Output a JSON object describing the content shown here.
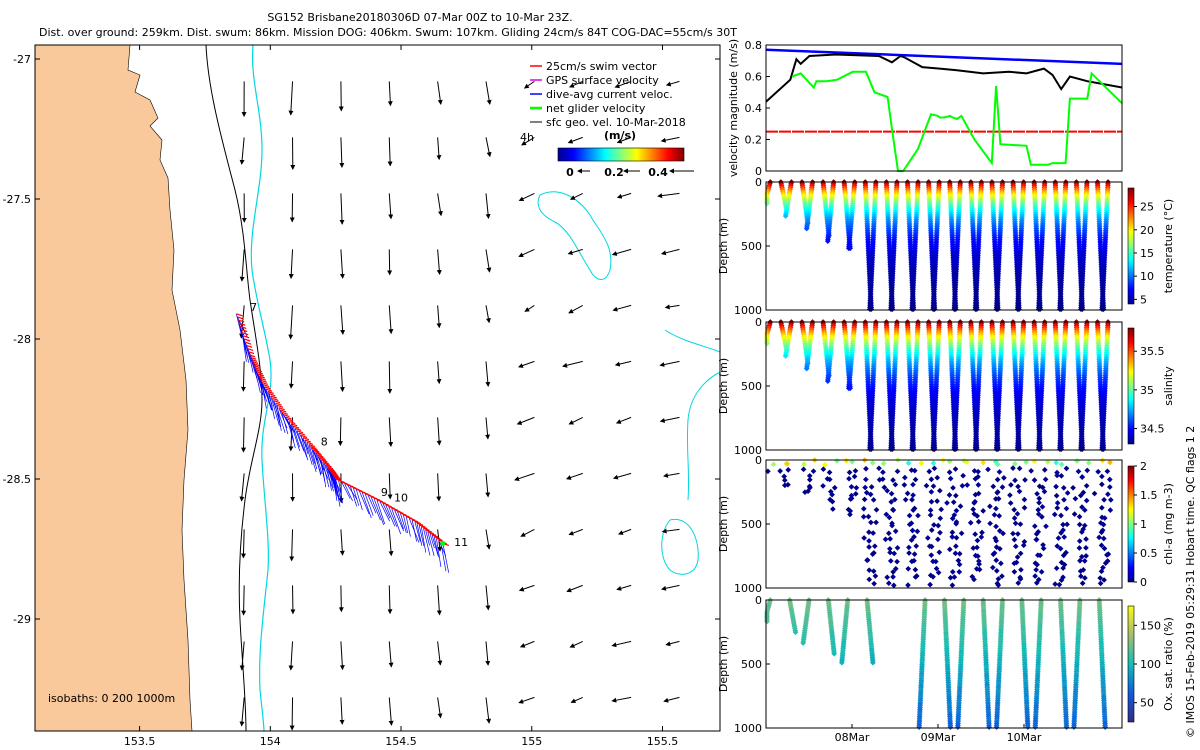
{
  "title": {
    "line1": "SG152 Brisbane20180306D 07-Mar 00Z to 10-Mar 23Z.",
    "line2": "Dist. over ground: 259km. Dist. swum: 86km. Mission DOG: 406km. Swum: 107km. Gliding 24cm/s 84T COG-DAC=55cm/s 30T"
  },
  "copyright": "© IMOS 15-Feb-2019 05:29:31 Hobart time. QC flags 1  2",
  "colors": {
    "land": "#F9C89B",
    "isobath_200": "#00D8E0",
    "isobath_1000": "#000000",
    "swim": "#FF0000",
    "gps": "#E000E0",
    "dac": "#0000FF",
    "net": "#00FF00",
    "sfc": "#000000"
  },
  "chart_data": [
    {
      "type": "map",
      "name": "glider track map",
      "xlim": [
        153.1,
        155.72
      ],
      "ylim": [
        -29.4,
        -26.95
      ],
      "x_ticks": [
        153.5,
        154,
        154.5,
        155,
        155.5
      ],
      "x_tick_labels": [
        "153.5",
        "154",
        "154.5",
        "155",
        "155.5"
      ],
      "y_ticks": [
        -27,
        -27.5,
        -28,
        -28.5,
        -29
      ],
      "y_tick_labels": [
        "-27",
        "-27.5",
        "-28",
        "-28.5",
        "-29"
      ],
      "legend": [
        {
          "label": "25cm/s swim vector",
          "color": "#FF0000"
        },
        {
          "label": "GPS surface velocity",
          "color": "#E000E0"
        },
        {
          "label": "dive-avg current veloc.",
          "color": "#0000FF"
        },
        {
          "label": "net glider velocity",
          "color": "#00FF00"
        },
        {
          "label": "sfc geo. vel. 10-Mar-2018",
          "color": "#000000"
        }
      ],
      "scale_label": "4h",
      "colorbar_label": "(m/s)",
      "colorbar_ticks": [
        "0",
        "0.2",
        "0.4"
      ],
      "isobaths_label": "isobaths: 0   200  1000m",
      "track_day_labels": [
        {
          "label": "7",
          "lon": 153.9,
          "lat": -27.9
        },
        {
          "label": "8",
          "lon": 154.17,
          "lat": -28.38
        },
        {
          "label": "9",
          "lon": 154.4,
          "lat": -28.56
        },
        {
          "label": "10",
          "lon": 154.45,
          "lat": -28.58
        },
        {
          "label": "11",
          "lon": 154.68,
          "lat": -28.74
        }
      ],
      "track": [
        {
          "lon": 153.87,
          "lat": -27.91
        },
        {
          "lon": 153.92,
          "lat": -28.06
        },
        {
          "lon": 153.97,
          "lat": -28.16
        },
        {
          "lon": 154.05,
          "lat": -28.27
        },
        {
          "lon": 154.15,
          "lat": -28.38
        },
        {
          "lon": 154.22,
          "lat": -28.46
        },
        {
          "lon": 154.25,
          "lat": -28.5
        },
        {
          "lon": 154.4,
          "lat": -28.57
        },
        {
          "lon": 154.55,
          "lat": -28.65
        },
        {
          "lon": 154.66,
          "lat": -28.73
        }
      ]
    },
    {
      "type": "line",
      "name": "velocity magnitude",
      "ylabel": "velocity magnitude (m/s)",
      "xlim": [
        0,
        4.1
      ],
      "ylim": [
        0,
        0.8
      ],
      "y_ticks": [
        0,
        0.2,
        0.4,
        0.6,
        0.8
      ],
      "y_tick_labels": [
        "0",
        "0.2",
        "0.4",
        "0.6",
        "0.8"
      ],
      "series": [
        {
          "name": "blue",
          "color": "#0000FF",
          "x": [
            0,
            4.1
          ],
          "y": [
            0.77,
            0.68
          ]
        },
        {
          "name": "black",
          "color": "#000000",
          "x": [
            0,
            0.28,
            0.35,
            0.4,
            0.5,
            0.8,
            1.3,
            1.45,
            1.55,
            1.6,
            1.8,
            2.0,
            2.2,
            2.5,
            2.8,
            3.0,
            3.2,
            3.3,
            3.4,
            3.5,
            3.7,
            4.1
          ],
          "y": [
            0.44,
            0.58,
            0.71,
            0.68,
            0.73,
            0.74,
            0.73,
            0.69,
            0.73,
            0.72,
            0.66,
            0.65,
            0.64,
            0.62,
            0.63,
            0.62,
            0.65,
            0.61,
            0.52,
            0.6,
            0.57,
            0.53
          ]
        },
        {
          "name": "red",
          "color": "#FF0000",
          "x": [
            0,
            4.1
          ],
          "y": [
            0.25,
            0.25
          ]
        },
        {
          "name": "green",
          "color": "#00FF00",
          "x": [
            0.3,
            0.4,
            0.55,
            0.58,
            0.7,
            0.82,
            1.0,
            1.15,
            1.25,
            1.4,
            1.45,
            1.52,
            1.58,
            1.75,
            1.9,
            1.98,
            2.0,
            2.05,
            2.12,
            2.15,
            2.2,
            2.25,
            2.4,
            2.6,
            2.65,
            2.7,
            3.0,
            3.05,
            3.25,
            3.3,
            3.45,
            3.5,
            3.7,
            3.75,
            4.1
          ],
          "y": [
            0.6,
            0.62,
            0.53,
            0.57,
            0.57,
            0.58,
            0.63,
            0.63,
            0.5,
            0.47,
            0.27,
            0.0,
            0.0,
            0.14,
            0.36,
            0.35,
            0.34,
            0.34,
            0.35,
            0.34,
            0.33,
            0.35,
            0.2,
            0.05,
            0.54,
            0.17,
            0.16,
            0.04,
            0.04,
            0.05,
            0.05,
            0.46,
            0.46,
            0.62,
            0.43
          ]
        }
      ]
    },
    {
      "type": "scatter",
      "name": "temperature section",
      "ylabel": "Depth (m)",
      "cbar_label": "temperature (°C)",
      "ylim": [
        1000,
        0
      ],
      "y_tick_labels": [
        "0",
        "500",
        "1000"
      ],
      "cbar_range": [
        4,
        29
      ],
      "cbar_tick_labels": [
        "5",
        "10",
        "15",
        "20",
        "25"
      ],
      "cbar_tick_values": [
        5,
        10,
        15,
        20,
        25
      ],
      "surface": 29,
      "deep": 4,
      "profiles": {
        "n": 33,
        "max_depth_shallow": 520,
        "max_depth_deep": 1000,
        "deep_from_day": 1.15
      }
    },
    {
      "type": "scatter",
      "name": "salinity section",
      "ylabel": "Depth (m)",
      "cbar_label": "salinity",
      "ylim": [
        1000,
        0
      ],
      "y_tick_labels": [
        "0",
        "500",
        "1000"
      ],
      "cbar_range": [
        34.3,
        35.8
      ],
      "cbar_tick_labels": [
        "34.5",
        "35",
        "35.5"
      ],
      "cbar_tick_values": [
        34.5,
        35,
        35.5
      ],
      "surface": 35.8,
      "deep": 34.3,
      "profiles": {
        "n": 33,
        "max_depth_shallow": 520,
        "max_depth_deep": 1000,
        "deep_from_day": 1.15
      }
    },
    {
      "type": "scatter",
      "name": "chlorophyll section",
      "ylabel": "Depth (m)",
      "cbar_label": "chl-a (mg m-3)",
      "ylim": [
        1000,
        0
      ],
      "y_tick_labels": [
        "0",
        "500",
        "1000"
      ],
      "cbar_range": [
        0,
        2
      ],
      "cbar_tick_labels": [
        "0",
        "0.5",
        "1",
        "1.5",
        "2"
      ],
      "cbar_tick_values": [
        0,
        0.5,
        1,
        1.5,
        2
      ],
      "surface": 0.5,
      "deep": 0,
      "profiles": {
        "n": 33,
        "max_depth_shallow": 450,
        "max_depth_deep": 980,
        "deep_from_day": 1.15
      }
    },
    {
      "type": "scatter",
      "name": "oxygen section",
      "ylabel": "Depth (m)",
      "cbar_label": "Ox. sat. ratio (%)",
      "ylim": [
        1000,
        0
      ],
      "y_tick_labels": [
        "0",
        "500",
        "1000"
      ],
      "x_tick_labels": [
        "08Mar",
        "09Mar",
        "10Mar"
      ],
      "x_tick_values": [
        1,
        2,
        3
      ],
      "cbar_range": [
        25,
        175
      ],
      "cbar_tick_labels": [
        "50",
        "100",
        "150"
      ],
      "cbar_tick_values": [
        50,
        100,
        150
      ],
      "surface": 125,
      "deep": 80,
      "profiles": {
        "n": 18,
        "max_depth_shallow": 500,
        "max_depth_deep": 1000,
        "deep_from_day": 1.8
      }
    }
  ]
}
